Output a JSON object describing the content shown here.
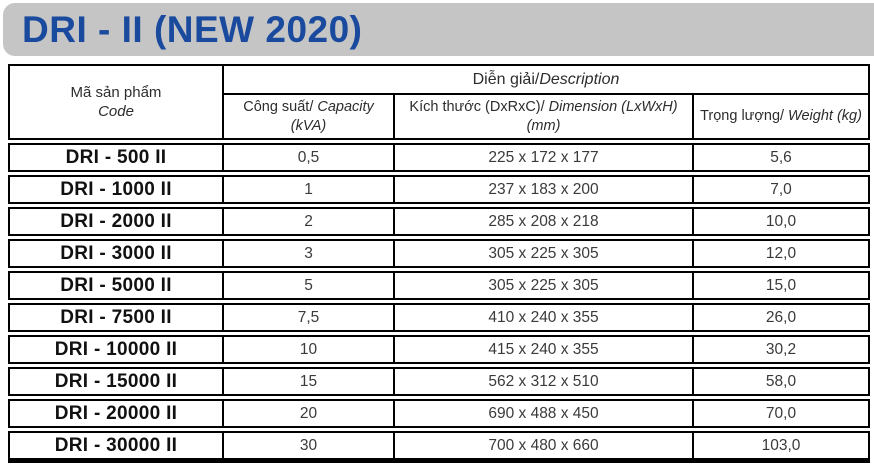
{
  "title": "DRI - II (NEW 2020)",
  "colors": {
    "title_blue": "#1a4a9e",
    "banner_gray": "#c5c5c5",
    "border": "#000000",
    "value_text": "#3a3a3a"
  },
  "table": {
    "headers": {
      "code_vi": "Mã sản phẩm",
      "code_en": "Code",
      "description_vi": "Diễn giải/",
      "description_en": "Description",
      "capacity_vi": "Công suất/",
      "capacity_en": "Capacity",
      "capacity_unit": "(kVA)",
      "dimension_vi": "Kích thước (DxRxC)/",
      "dimension_en": "Dimension (LxWxH)",
      "dimension_unit": "(mm)",
      "weight_vi": "Trọng lượng/",
      "weight_en": "Weight (kg)"
    },
    "rows": [
      {
        "code": "DRI - 500 II",
        "capacity": "0,5",
        "dimension": "225 x 172 x 177",
        "weight": "5,6"
      },
      {
        "code": "DRI - 1000 II",
        "capacity": "1",
        "dimension": "237 x 183 x 200",
        "weight": "7,0"
      },
      {
        "code": "DRI - 2000 II",
        "capacity": "2",
        "dimension": "285 x 208 x 218",
        "weight": "10,0"
      },
      {
        "code": "DRI - 3000 II",
        "capacity": "3",
        "dimension": "305 x 225 x 305",
        "weight": "12,0"
      },
      {
        "code": "DRI - 5000 II",
        "capacity": "5",
        "dimension": "305 x 225 x 305",
        "weight": "15,0"
      },
      {
        "code": "DRI - 7500 II",
        "capacity": "7,5",
        "dimension": "410 x 240 x 355",
        "weight": "26,0"
      },
      {
        "code": "DRI - 10000 II",
        "capacity": "10",
        "dimension": "415 x 240 x 355",
        "weight": "30,2"
      },
      {
        "code": "DRI - 15000 II",
        "capacity": "15",
        "dimension": "562 x 312 x 510",
        "weight": "58,0"
      },
      {
        "code": "DRI - 20000 II",
        "capacity": "20",
        "dimension": "690 x 488 x 450",
        "weight": "70,0"
      },
      {
        "code": "DRI - 30000 II",
        "capacity": "30",
        "dimension": "700 x 480 x 660",
        "weight": "103,0"
      }
    ]
  }
}
